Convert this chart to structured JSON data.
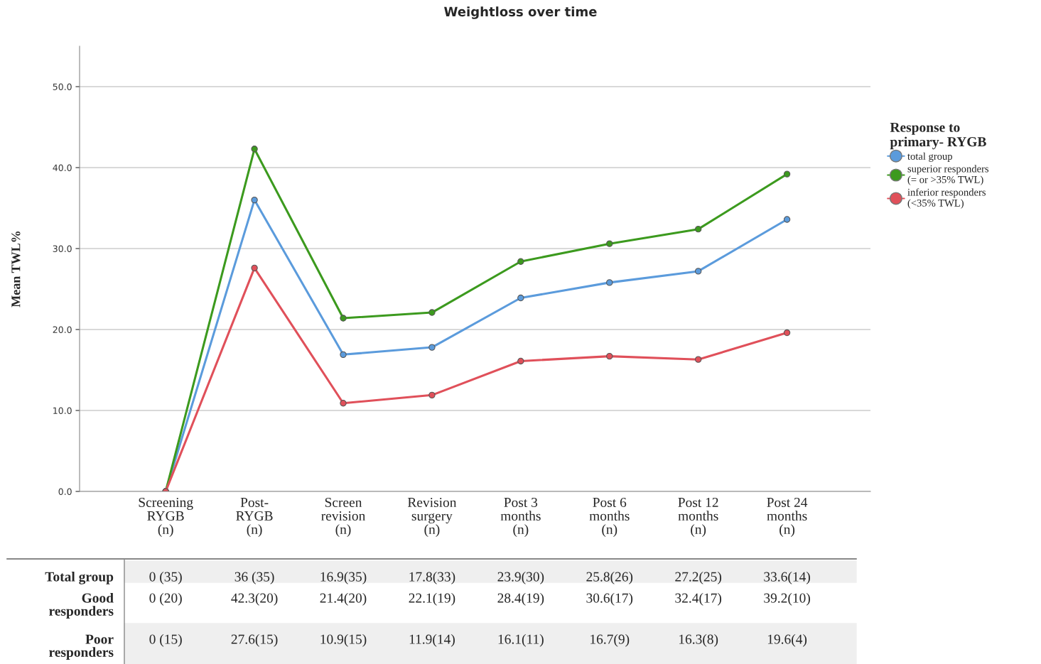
{
  "chart_data": {
    "type": "line",
    "title": "Weightloss over time",
    "ylabel": "Mean TWL%",
    "legend_title": "Response to\nprimary- RYGB",
    "categories": [
      "Screening\nRYGB\n(n)",
      "Post-\nRYGB\n(n)",
      "Screen\nrevision\n(n)",
      "Revision\nsurgery\n(n)",
      "Post 3\nmonths\n(n)",
      "Post 6\nmonths\n(n)",
      "Post 12\nmonths\n(n)",
      "Post 24\nmonths\n(n)"
    ],
    "series": [
      {
        "name": "total group",
        "color": "#5b9bdc",
        "values": [
          0,
          36,
          16.9,
          17.8,
          23.9,
          25.8,
          27.2,
          33.6
        ],
        "value_labels": [
          "0 (35)",
          "36 (35)",
          "16.9(35)",
          "17.8(33)",
          "23.9(30)",
          "25.8(26)",
          "27.2(25)",
          "33.6(14)"
        ]
      },
      {
        "name": "superior responders\n(= or >35% TWL)",
        "color": "#3c9a1e",
        "values": [
          0,
          42.3,
          21.4,
          22.1,
          28.4,
          30.6,
          32.4,
          39.2
        ],
        "value_labels": [
          "0 (20)",
          "42.3(20)",
          "21.4(20)",
          "22.1(19)",
          "28.4(19)",
          "30.6(17)",
          "32.4(17)",
          "39.2(10)"
        ]
      },
      {
        "name": "inferior responders\n(<35% TWL)",
        "color": "#e0505a",
        "values": [
          0,
          27.6,
          10.9,
          11.9,
          16.1,
          16.7,
          16.3,
          19.6
        ],
        "value_labels": [
          "0 (15)",
          "27.6(15)",
          "10.9(15)",
          "11.9(14)",
          "16.1(11)",
          "16.7(9)",
          "16.3(8)",
          "19.6(4)"
        ]
      }
    ],
    "annotations": [
      "Total group",
      "Good\nresponders",
      "Poor\nresponders"
    ],
    "ylim": [
      0,
      55
    ],
    "yticks": [
      {
        "value": 0,
        "label": "0.0"
      },
      {
        "value": 10,
        "label": "10.0"
      },
      {
        "value": 20,
        "label": "20.0"
      },
      {
        "value": 30,
        "label": "30.0"
      },
      {
        "value": 40,
        "label": "40.0"
      },
      {
        "value": 50,
        "label": "50.0"
      }
    ],
    "grid": "y",
    "legend": "right",
    "marker": "circle",
    "line_style": "solid"
  }
}
